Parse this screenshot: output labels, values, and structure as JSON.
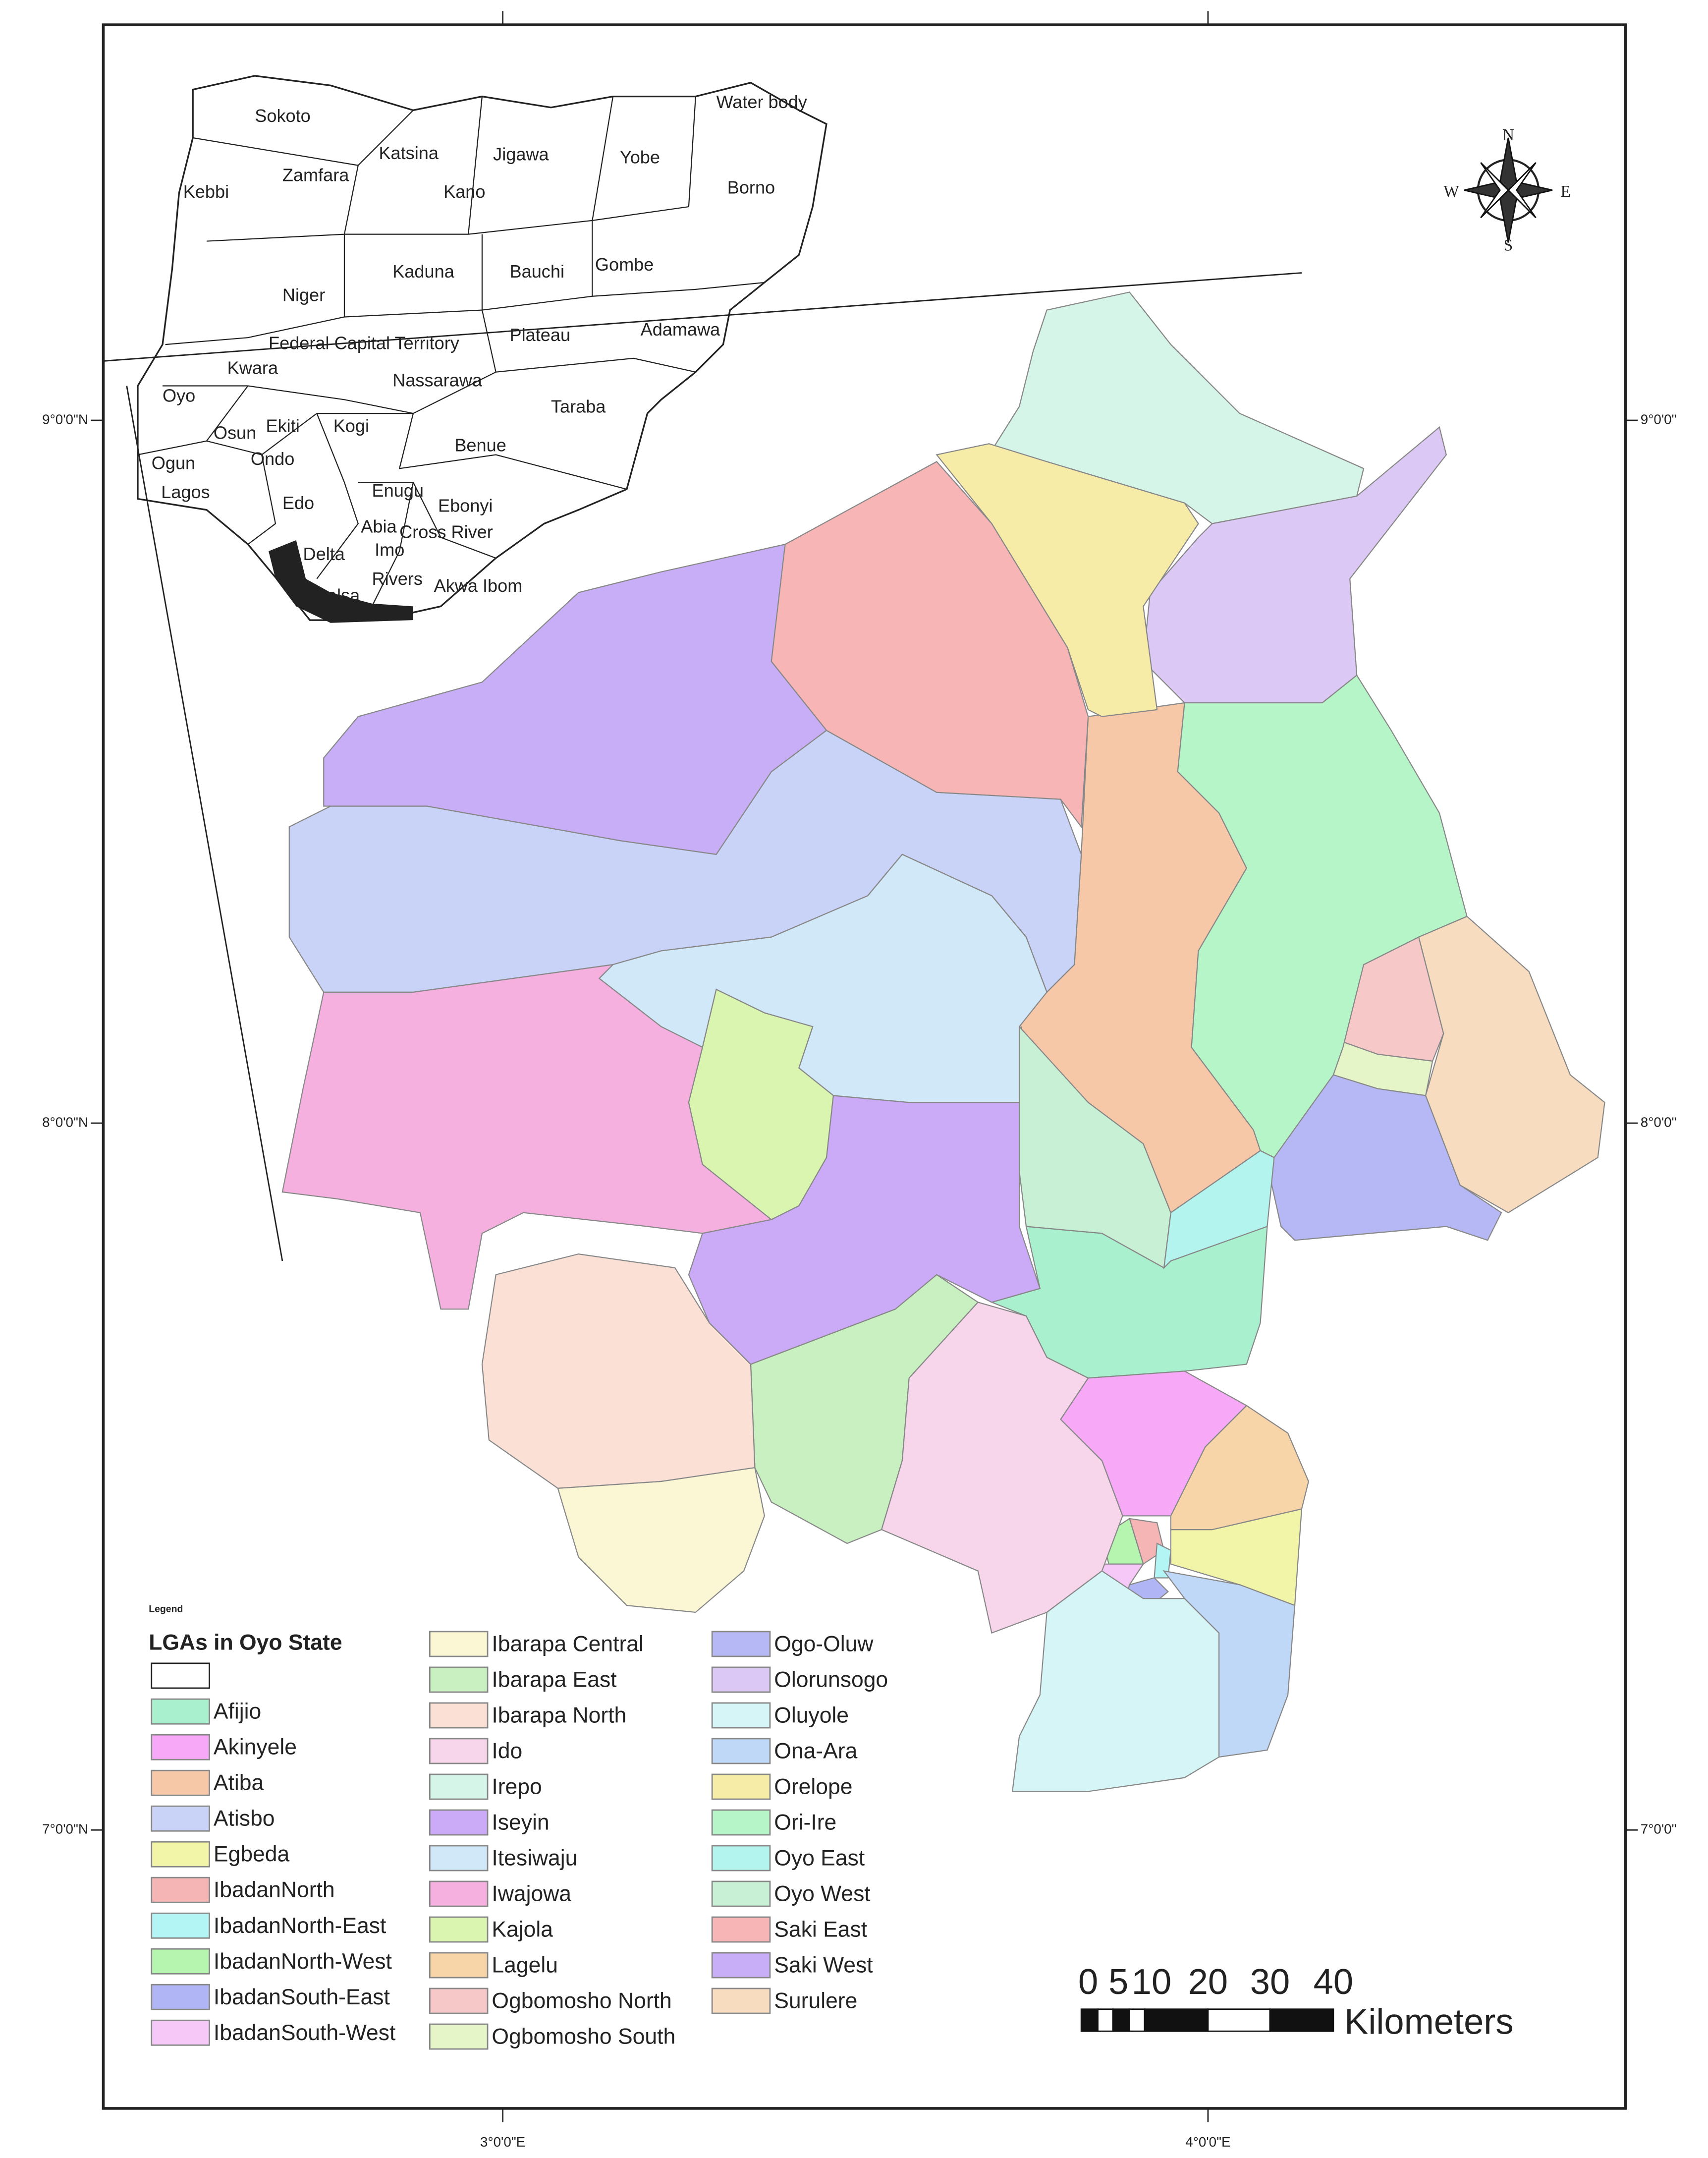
{
  "map": {
    "inset_labels": [
      "Sokoto",
      "Water body",
      "Katsina",
      "Jigawa",
      "Yobe",
      "Kebbi",
      "Zamfara",
      "Kano",
      "Borno",
      "Kaduna",
      "Bauchi",
      "Gombe",
      "Niger",
      "Federal Capital Territory",
      "Plateau",
      "Adamawa",
      "Kwara",
      "Nassarawa",
      "Oyo",
      "Taraba",
      "Osun",
      "Ekiti",
      "Kogi",
      "Benue",
      "Ogun",
      "Ondo",
      "Lagos",
      "Edo",
      "Enugu",
      "Ebonyi",
      "Abia",
      "Cross River",
      "Imo",
      "Delta",
      "Rivers",
      "Akwa Ibom",
      "Bayelsa"
    ],
    "compass": {
      "n": "N",
      "s": "S",
      "e": "E",
      "w": "W"
    },
    "lat_labels_left": [
      "9°0'0\"N",
      "8°0'0\"N",
      "7°0'0\"N"
    ],
    "lat_labels_right": [
      "9°0'0\"",
      "8°0'0\"",
      "7°0'0\""
    ],
    "lon_labels": [
      "3°0'0\"E",
      "4°0'0\"E"
    ],
    "legend": {
      "heading": "Legend",
      "title": "LGAs in Oyo State",
      "items": [
        {
          "name": "Afijio",
          "color": "#a9f0cf"
        },
        {
          "name": "Akinyele",
          "color": "#f7a8f7"
        },
        {
          "name": "Atiba",
          "color": "#f7c8a8"
        },
        {
          "name": "Atisbo",
          "color": "#c8d3f7"
        },
        {
          "name": "Egbeda",
          "color": "#f2f5a8"
        },
        {
          "name": "IbadanNorth",
          "color": "#f5b5b5"
        },
        {
          "name": "IbadanNorth-East",
          "color": "#b3f5f5"
        },
        {
          "name": "IbadanNorth-West",
          "color": "#b5f5b0"
        },
        {
          "name": "IbadanSouth-East",
          "color": "#b0b5f5"
        },
        {
          "name": "IbadanSouth-West",
          "color": "#f5c8f7"
        },
        {
          "name": "Ibarapa Central",
          "color": "#fbf7d5"
        },
        {
          "name": "Ibarapa East",
          "color": "#c8f0c0"
        },
        {
          "name": "Ibarapa North",
          "color": "#fae0d5"
        },
        {
          "name": "Ido",
          "color": "#f7d5ea"
        },
        {
          "name": "Irepo",
          "color": "#d5f5e8"
        },
        {
          "name": "Iseyin",
          "color": "#cbaaf7"
        },
        {
          "name": "Itesiwaju",
          "color": "#d0e8f7"
        },
        {
          "name": "Iwajowa",
          "color": "#f5b0e0"
        },
        {
          "name": "Kajola",
          "color": "#daf5b0"
        },
        {
          "name": "Lagelu",
          "color": "#f7d5a8"
        },
        {
          "name": "Ogbomosho North",
          "color": "#f7c8c8"
        },
        {
          "name": "Ogbomosho South",
          "color": "#e5f5c8"
        },
        {
          "name": "Ogo-Oluw",
          "color": "#b5b8f5"
        },
        {
          "name": "Olorunsogo",
          "color": "#dcc8f5"
        },
        {
          "name": "Oluyole",
          "color": "#d5f5f7"
        },
        {
          "name": "Ona-Ara",
          "color": "#c0d8f7"
        },
        {
          "name": "Orelope",
          "color": "#f7eba8"
        },
        {
          "name": "Ori-Ire",
          "color": "#b5f5c8"
        },
        {
          "name": "Oyo East",
          "color": "#b3f5ee"
        },
        {
          "name": "Oyo West",
          "color": "#c8f0d5"
        },
        {
          "name": "Saki East",
          "color": "#f7b5b5"
        },
        {
          "name": "Saki West",
          "color": "#c8aef7"
        },
        {
          "name": "Surulere",
          "color": "#f7dcc0"
        }
      ]
    },
    "scale_bar": {
      "labels": [
        "0",
        "5",
        "10",
        "20",
        "30",
        "40"
      ],
      "unit": "Kilometers"
    }
  }
}
